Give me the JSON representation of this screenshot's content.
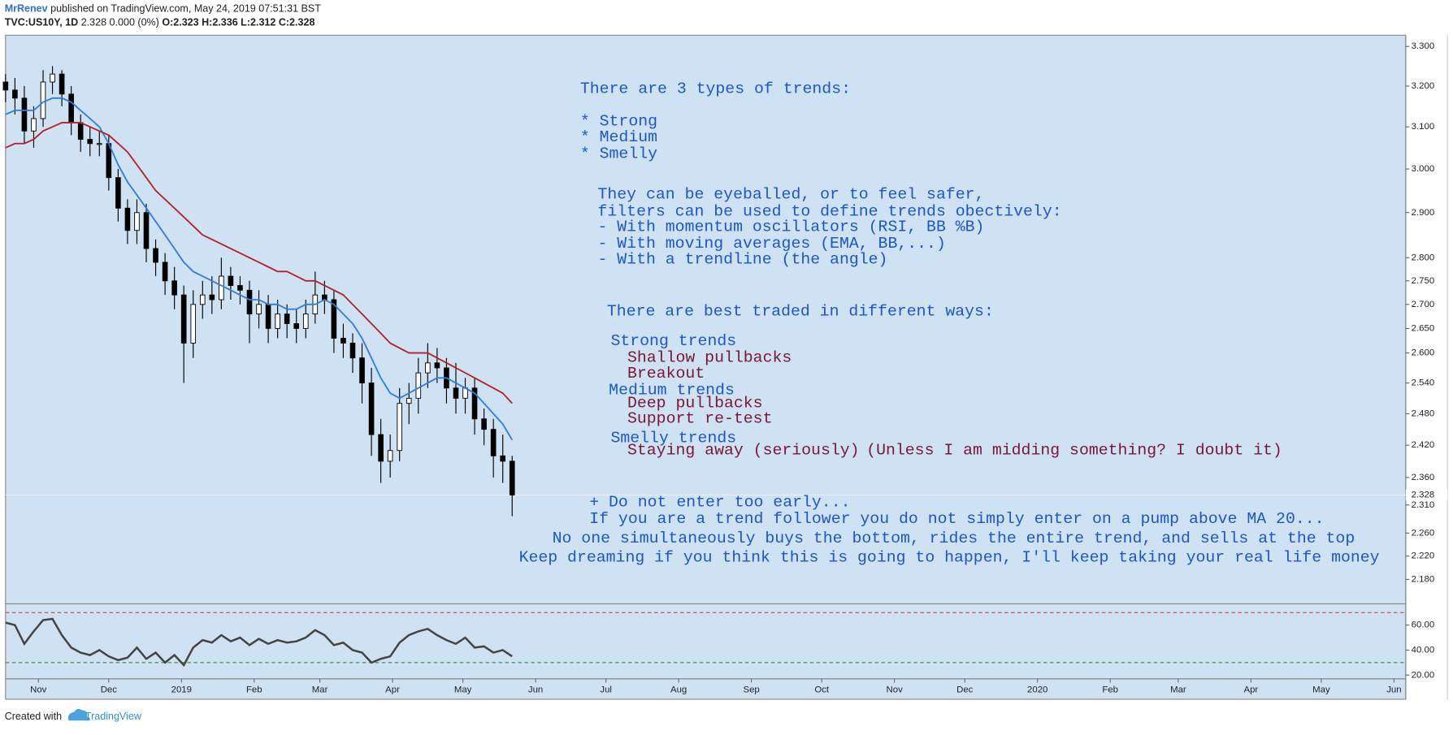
{
  "header": {
    "publisher": "MrRenev",
    "published": "published on TradingView.com, May 24, 2019 07:51:31 BST",
    "symbol": "TVC:US10Y, 1D",
    "change": "2.328 0.000 (0%)",
    "ohlc": "O:2.323 H:2.336 L:2.312 C:2.328"
  },
  "footer": {
    "created_with": "Created with",
    "brand": "TradingView"
  },
  "chart_data": [
    {
      "type": "candlestick",
      "log_scale": true,
      "up_color": "#ffffff",
      "down_color": "#000000",
      "wick_color": "#000000",
      "background": "#cfe2f3",
      "x": [
        "2018-10-18",
        "2018-10-22",
        "2018-10-26",
        "2018-10-30",
        "2018-11-03",
        "2018-11-07",
        "2018-11-11",
        "2018-11-15",
        "2018-11-19",
        "2018-11-23",
        "2018-11-27",
        "2018-12-01",
        "2018-12-05",
        "2018-12-09",
        "2018-12-13",
        "2018-12-17",
        "2018-12-21",
        "2018-12-25",
        "2018-12-29",
        "2019-01-02",
        "2019-01-06",
        "2019-01-10",
        "2019-01-14",
        "2019-01-18",
        "2019-01-22",
        "2019-01-26",
        "2019-01-30",
        "2019-02-03",
        "2019-02-07",
        "2019-02-11",
        "2019-02-15",
        "2019-02-19",
        "2019-02-23",
        "2019-02-27",
        "2019-03-03",
        "2019-03-07",
        "2019-03-11",
        "2019-03-15",
        "2019-03-19",
        "2019-03-23",
        "2019-03-27",
        "2019-03-31",
        "2019-04-04",
        "2019-04-08",
        "2019-04-12",
        "2019-04-16",
        "2019-04-20",
        "2019-04-24",
        "2019-04-28",
        "2019-05-02",
        "2019-05-06",
        "2019-05-10",
        "2019-05-14",
        "2019-05-18",
        "2019-05-22"
      ],
      "open": [
        3.21,
        3.19,
        3.17,
        3.09,
        3.12,
        3.21,
        3.23,
        3.18,
        3.11,
        3.07,
        3.06,
        3.06,
        2.98,
        2.91,
        2.86,
        2.9,
        2.82,
        2.79,
        2.75,
        2.72,
        2.62,
        2.7,
        2.72,
        2.71,
        2.76,
        2.74,
        2.73,
        2.68,
        2.7,
        2.65,
        2.68,
        2.66,
        2.65,
        2.68,
        2.72,
        2.71,
        2.63,
        2.62,
        2.59,
        2.54,
        2.44,
        2.39,
        2.41,
        2.5,
        2.51,
        2.56,
        2.58,
        2.57,
        2.53,
        2.51,
        2.53,
        2.47,
        2.45,
        2.4,
        2.39
      ],
      "high": [
        3.23,
        3.22,
        3.2,
        3.15,
        3.24,
        3.25,
        3.24,
        3.2,
        3.13,
        3.1,
        3.09,
        3.08,
        3.0,
        2.93,
        2.93,
        2.92,
        2.84,
        2.81,
        2.78,
        2.74,
        2.73,
        2.75,
        2.76,
        2.8,
        2.78,
        2.76,
        2.75,
        2.73,
        2.72,
        2.71,
        2.7,
        2.69,
        2.71,
        2.77,
        2.75,
        2.73,
        2.66,
        2.64,
        2.62,
        2.57,
        2.47,
        2.44,
        2.53,
        2.54,
        2.59,
        2.62,
        2.61,
        2.59,
        2.58,
        2.55,
        2.55,
        2.49,
        2.47,
        2.44,
        2.4
      ],
      "low": [
        3.16,
        3.13,
        3.06,
        3.05,
        3.1,
        3.18,
        3.15,
        3.08,
        3.04,
        3.03,
        3.03,
        2.95,
        2.88,
        2.83,
        2.83,
        2.79,
        2.76,
        2.72,
        2.69,
        2.54,
        2.59,
        2.67,
        2.68,
        2.69,
        2.71,
        2.7,
        2.62,
        2.65,
        2.62,
        2.63,
        2.63,
        2.62,
        2.63,
        2.66,
        2.68,
        2.6,
        2.59,
        2.56,
        2.5,
        2.4,
        2.35,
        2.36,
        2.39,
        2.46,
        2.48,
        2.53,
        2.54,
        2.5,
        2.48,
        2.48,
        2.44,
        2.42,
        2.36,
        2.35,
        2.29
      ],
      "close": [
        3.19,
        3.17,
        3.09,
        3.12,
        3.21,
        3.23,
        3.18,
        3.11,
        3.07,
        3.06,
        3.06,
        2.98,
        2.91,
        2.86,
        2.9,
        2.82,
        2.79,
        2.75,
        2.72,
        2.62,
        2.7,
        2.72,
        2.71,
        2.76,
        2.74,
        2.73,
        2.68,
        2.7,
        2.65,
        2.68,
        2.66,
        2.65,
        2.68,
        2.72,
        2.71,
        2.63,
        2.62,
        2.59,
        2.54,
        2.44,
        2.39,
        2.41,
        2.5,
        2.51,
        2.56,
        2.58,
        2.57,
        2.53,
        2.51,
        2.53,
        2.47,
        2.45,
        2.4,
        2.39,
        2.328
      ],
      "series": [
        {
          "color": "#2f7fd9",
          "values": [
            3.13,
            3.14,
            3.14,
            3.14,
            3.16,
            3.17,
            3.17,
            3.16,
            3.14,
            3.12,
            3.1,
            3.06,
            3.01,
            2.97,
            2.94,
            2.91,
            2.88,
            2.85,
            2.82,
            2.79,
            2.77,
            2.76,
            2.75,
            2.74,
            2.73,
            2.72,
            2.71,
            2.71,
            2.7,
            2.7,
            2.69,
            2.69,
            2.7,
            2.7,
            2.71,
            2.7,
            2.68,
            2.66,
            2.63,
            2.59,
            2.55,
            2.52,
            2.51,
            2.52,
            2.53,
            2.54,
            2.55,
            2.55,
            2.54,
            2.53,
            2.52,
            2.5,
            2.48,
            2.46,
            2.43
          ]
        },
        {
          "color": "#b5202a",
          "values": [
            3.05,
            3.06,
            3.06,
            3.07,
            3.09,
            3.1,
            3.11,
            3.11,
            3.11,
            3.1,
            3.09,
            3.08,
            3.06,
            3.04,
            3.01,
            2.98,
            2.95,
            2.93,
            2.91,
            2.89,
            2.87,
            2.85,
            2.84,
            2.83,
            2.82,
            2.81,
            2.8,
            2.79,
            2.78,
            2.77,
            2.77,
            2.76,
            2.75,
            2.75,
            2.74,
            2.73,
            2.72,
            2.7,
            2.68,
            2.66,
            2.64,
            2.62,
            2.61,
            2.6,
            2.6,
            2.6,
            2.59,
            2.58,
            2.57,
            2.56,
            2.55,
            2.54,
            2.53,
            2.52,
            2.5
          ]
        }
      ],
      "last_price": 2.328,
      "xlim": [
        "2018-10-18",
        "2020-06-06"
      ],
      "xticks": [
        {
          "value": "2018-11-01",
          "label": "Nov"
        },
        {
          "value": "2018-12-01",
          "label": "Dec"
        },
        {
          "value": "2019-01-01",
          "label": "2019"
        },
        {
          "value": "2019-02-01",
          "label": "Feb"
        },
        {
          "value": "2019-03-01",
          "label": "Mar"
        },
        {
          "value": "2019-04-01",
          "label": "Apr"
        },
        {
          "value": "2019-05-01",
          "label": "May"
        },
        {
          "value": "2019-06-01",
          "label": "Jun"
        },
        {
          "value": "2019-07-01",
          "label": "Jul"
        },
        {
          "value": "2019-08-01",
          "label": "Aug"
        },
        {
          "value": "2019-09-01",
          "label": "Sep"
        },
        {
          "value": "2019-10-01",
          "label": "Oct"
        },
        {
          "value": "2019-11-01",
          "label": "Nov"
        },
        {
          "value": "2019-12-01",
          "label": "Dec"
        },
        {
          "value": "2020-01-01",
          "label": "2020"
        },
        {
          "value": "2020-02-01",
          "label": "Feb"
        },
        {
          "value": "2020-03-01",
          "label": "Mar"
        },
        {
          "value": "2020-04-01",
          "label": "Apr"
        },
        {
          "value": "2020-05-01",
          "label": "May"
        },
        {
          "value": "2020-06-01",
          "label": "Jun"
        }
      ],
      "ylim": [
        2.139,
        3.329
      ],
      "yticks": [
        {
          "value": 3.3,
          "label": "3.300"
        },
        {
          "value": 3.2,
          "label": "3.200"
        },
        {
          "value": 3.1,
          "label": "3.100"
        },
        {
          "value": 3.0,
          "label": "3.000"
        },
        {
          "value": 2.9,
          "label": "2.900"
        },
        {
          "value": 2.8,
          "label": "2.800"
        },
        {
          "value": 2.75,
          "label": "2.750"
        },
        {
          "value": 2.7,
          "label": "2.700"
        },
        {
          "value": 2.65,
          "label": "2.650"
        },
        {
          "value": 2.6,
          "label": "2.600"
        },
        {
          "value": 2.54,
          "label": "2.540"
        },
        {
          "value": 2.48,
          "label": "2.480"
        },
        {
          "value": 2.42,
          "label": "2.420"
        },
        {
          "value": 2.36,
          "label": "2.360"
        },
        {
          "value": 2.31,
          "label": "2.310"
        },
        {
          "value": 2.26,
          "label": "2.260"
        },
        {
          "value": 2.22,
          "label": "2.220"
        },
        {
          "value": 2.18,
          "label": "2.180"
        }
      ],
      "annotations": [
        {
          "text": "There are 3 types of trends:",
          "color": "#1b57c8"
        },
        {
          "text": "* Strong",
          "color": "#1b57c8"
        },
        {
          "text": "* Medium",
          "color": "#1b57c8"
        },
        {
          "text": "* Smelly",
          "color": "#1b57c8"
        },
        {
          "text": "They can be eyeballed, or to feel safer,",
          "color": "#1b57c8"
        },
        {
          "text": "filters can be used to define trends obectively:",
          "color": "#1b57c8"
        },
        {
          "text": "- With momentum oscillators (RSI, BB %B)",
          "color": "#1b57c8"
        },
        {
          "text": "- With moving averages (EMA, BB,...)",
          "color": "#1b57c8"
        },
        {
          "text": "- With a trendline (the angle)",
          "color": "#1b57c8"
        },
        {
          "text": "There are best traded in different ways:",
          "color": "#1b57c8"
        },
        {
          "text": "Strong trends",
          "color": "#1b57c8"
        },
        {
          "text": "Shallow pullbacks",
          "color": "#7a1638"
        },
        {
          "text": "Breakout",
          "color": "#7a1638"
        },
        {
          "text": "Medium trends",
          "color": "#1b57c8"
        },
        {
          "text": "Deep pullbacks",
          "color": "#7a1638"
        },
        {
          "text": "Support re-test",
          "color": "#7a1638"
        },
        {
          "text": "Smelly trends",
          "color": "#1b57c8"
        },
        {
          "text": "Staying away (seriously)",
          "color": "#7a1638"
        },
        {
          "text": "(Unless I am midding something? I doubt it)",
          "color": "#7a1638"
        },
        {
          "text": "+ Do not enter too early...",
          "color": "#1b57c8"
        },
        {
          "text": "If you are a trend follower you do not simply enter on a pump above MA 20...",
          "color": "#1b57c8"
        },
        {
          "text": "No one simultaneously buys the bottom, rides the entire trend, and sells at the top",
          "color": "#1b57c8"
        },
        {
          "text": "Keep dreaming if you think this is going to happen, I'll keep taking your real life money",
          "color": "#1b57c8"
        }
      ]
    },
    {
      "type": "line",
      "color": "#444444",
      "background": "#cfe2f3",
      "values": [
        62,
        60,
        45,
        55,
        64,
        65,
        52,
        42,
        38,
        36,
        40,
        35,
        32,
        34,
        42,
        33,
        38,
        30,
        36,
        28,
        42,
        48,
        46,
        52,
        47,
        50,
        44,
        49,
        45,
        48,
        46,
        47,
        50,
        56,
        52,
        44,
        46,
        40,
        38,
        30,
        33,
        35,
        46,
        52,
        55,
        57,
        52,
        48,
        45,
        50,
        42,
        43,
        38,
        40,
        35
      ],
      "levels": [
        {
          "value": 70,
          "color": "#e0383a"
        },
        {
          "value": 30,
          "color": "#3a8a3a"
        }
      ],
      "ylim": [
        17,
        77
      ],
      "yticks": [
        {
          "value": 60,
          "label": "60.00"
        },
        {
          "value": 40,
          "label": "40.00"
        },
        {
          "value": 20,
          "label": "20.00"
        }
      ]
    }
  ]
}
